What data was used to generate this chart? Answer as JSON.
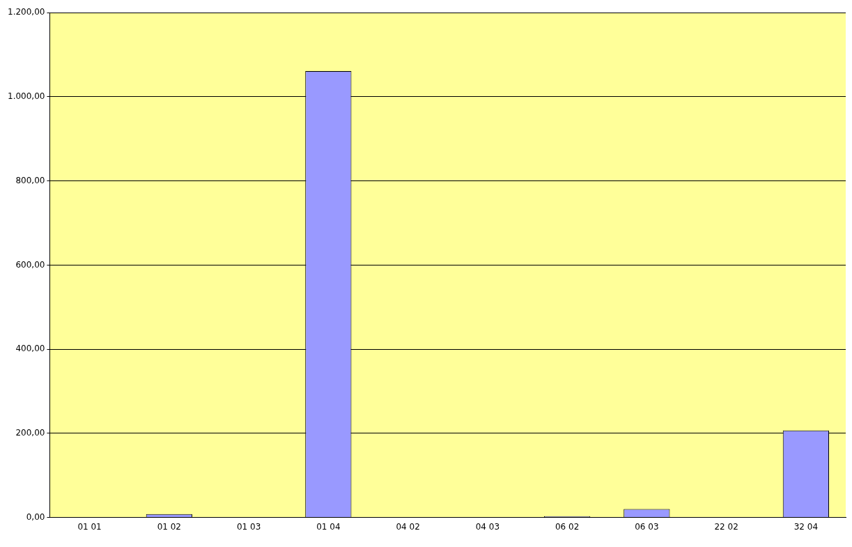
{
  "chart_data": {
    "type": "bar",
    "categories": [
      "01 01",
      "01 02",
      "01 03",
      "01 04",
      "04 02",
      "04 03",
      "06 02",
      "06 03",
      "22 02",
      "32 04"
    ],
    "values": [
      0,
      8,
      0,
      1061,
      0,
      0,
      3,
      20,
      0,
      207
    ],
    "color": "#9999ff",
    "ylim": [
      0,
      1200
    ],
    "yticks": [
      {
        "value": 0,
        "label": "0,00"
      },
      {
        "value": 200,
        "label": "200,00"
      },
      {
        "value": 400,
        "label": "400,00"
      },
      {
        "value": 600,
        "label": "600,00"
      },
      {
        "value": 800,
        "label": "800,00"
      },
      {
        "value": 1000,
        "label": "1.000,00"
      },
      {
        "value": 1200,
        "label": "1.200,00"
      }
    ],
    "grid": "y",
    "legend": false
  }
}
